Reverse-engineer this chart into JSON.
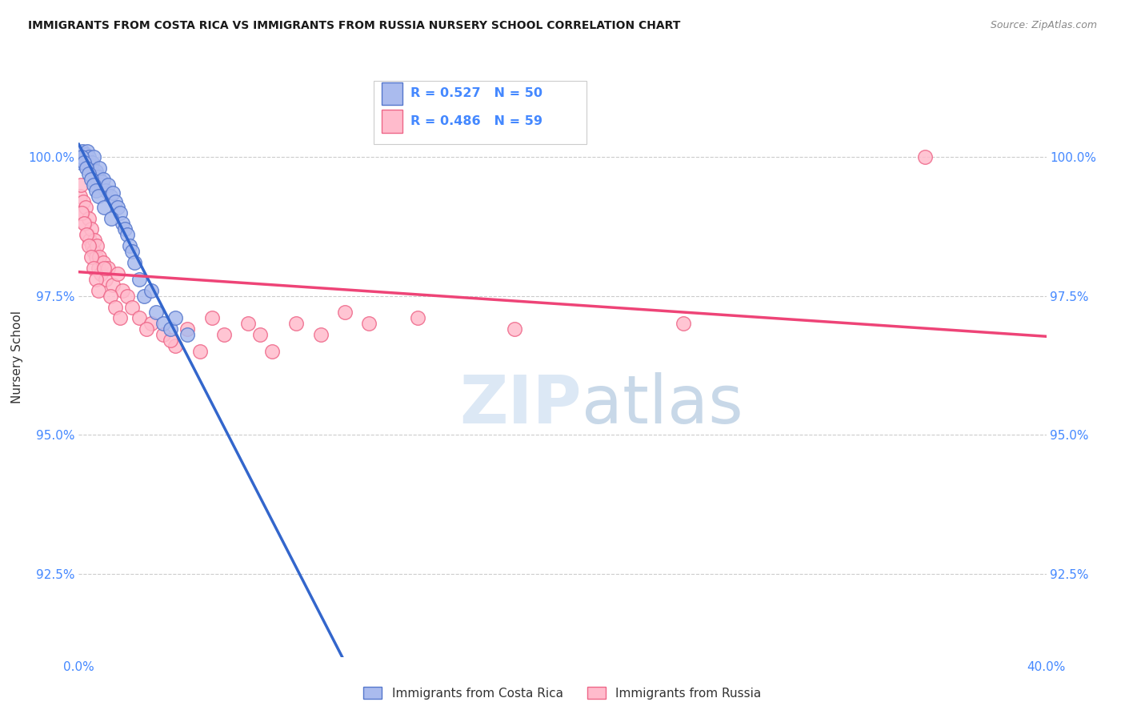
{
  "title": "IMMIGRANTS FROM COSTA RICA VS IMMIGRANTS FROM RUSSIA NURSERY SCHOOL CORRELATION CHART",
  "source": "Source: ZipAtlas.com",
  "ylabel": "Nursery School",
  "xlim": [
    0.0,
    40.0
  ],
  "ylim": [
    91.0,
    101.8
  ],
  "yticks": [
    92.5,
    95.0,
    97.5,
    100.0
  ],
  "ytick_labels": [
    "92.5%",
    "95.0%",
    "97.5%",
    "100.0%"
  ],
  "xticks": [
    0.0,
    5.0,
    10.0,
    15.0,
    20.0,
    25.0,
    30.0,
    35.0,
    40.0
  ],
  "xtick_labels": [
    "0.0%",
    "",
    "",
    "",
    "",
    "",
    "",
    "",
    "40.0%"
  ],
  "legend_labels": [
    "Immigrants from Costa Rica",
    "Immigrants from Russia"
  ],
  "blue_R": 0.527,
  "blue_N": 50,
  "pink_R": 0.486,
  "pink_N": 59,
  "blue_line_color": "#3366cc",
  "pink_line_color": "#ee4477",
  "blue_scatter_face": "#aabbee",
  "blue_scatter_edge": "#5577cc",
  "pink_scatter_face": "#ffbbcc",
  "pink_scatter_edge": "#ee6688",
  "background_color": "#ffffff",
  "grid_color": "#cccccc",
  "text_color": "#333333",
  "axis_label_color": "#4488ff",
  "blue_x": [
    0.1,
    0.15,
    0.2,
    0.25,
    0.3,
    0.35,
    0.4,
    0.45,
    0.5,
    0.55,
    0.6,
    0.65,
    0.7,
    0.75,
    0.8,
    0.85,
    0.9,
    0.95,
    1.0,
    1.1,
    1.2,
    1.3,
    1.4,
    1.5,
    1.6,
    1.7,
    1.8,
    1.9,
    2.0,
    2.1,
    2.2,
    2.3,
    2.5,
    2.7,
    3.0,
    3.2,
    3.5,
    3.8,
    4.0,
    4.5,
    0.12,
    0.22,
    0.32,
    0.42,
    0.52,
    0.62,
    0.72,
    0.82,
    1.05,
    1.35
  ],
  "blue_y": [
    99.9,
    100.1,
    100.0,
    99.95,
    100.05,
    100.1,
    100.0,
    99.8,
    99.85,
    99.9,
    100.0,
    99.7,
    99.75,
    99.6,
    99.65,
    99.8,
    99.5,
    99.55,
    99.6,
    99.4,
    99.5,
    99.3,
    99.35,
    99.2,
    99.1,
    99.0,
    98.8,
    98.7,
    98.6,
    98.4,
    98.3,
    98.1,
    97.8,
    97.5,
    97.6,
    97.2,
    97.0,
    96.9,
    97.1,
    96.8,
    100.0,
    99.9,
    99.8,
    99.7,
    99.6,
    99.5,
    99.4,
    99.3,
    99.1,
    98.9
  ],
  "pink_x": [
    0.05,
    0.1,
    0.15,
    0.2,
    0.25,
    0.3,
    0.35,
    0.4,
    0.45,
    0.5,
    0.55,
    0.6,
    0.65,
    0.7,
    0.75,
    0.8,
    0.85,
    0.9,
    1.0,
    1.1,
    1.2,
    1.4,
    1.6,
    1.8,
    2.0,
    2.2,
    2.5,
    3.0,
    3.5,
    4.0,
    5.0,
    6.0,
    7.0,
    8.0,
    10.0,
    12.0,
    0.12,
    0.22,
    0.32,
    0.42,
    0.52,
    0.62,
    0.72,
    0.82,
    1.05,
    1.3,
    1.5,
    1.7,
    2.8,
    3.8,
    4.5,
    5.5,
    7.5,
    9.0,
    11.0,
    14.0,
    18.0,
    25.0,
    35.0
  ],
  "pink_y": [
    99.3,
    99.5,
    99.0,
    99.2,
    98.8,
    99.1,
    98.6,
    98.9,
    98.5,
    98.7,
    98.4,
    98.3,
    98.5,
    98.2,
    98.4,
    98.0,
    98.2,
    97.9,
    98.1,
    97.8,
    98.0,
    97.7,
    97.9,
    97.6,
    97.5,
    97.3,
    97.1,
    97.0,
    96.8,
    96.6,
    96.5,
    96.8,
    97.0,
    96.5,
    96.8,
    97.0,
    99.0,
    98.8,
    98.6,
    98.4,
    98.2,
    98.0,
    97.8,
    97.6,
    98.0,
    97.5,
    97.3,
    97.1,
    96.9,
    96.7,
    96.9,
    97.1,
    96.8,
    97.0,
    97.2,
    97.1,
    96.9,
    97.0,
    100.0
  ]
}
